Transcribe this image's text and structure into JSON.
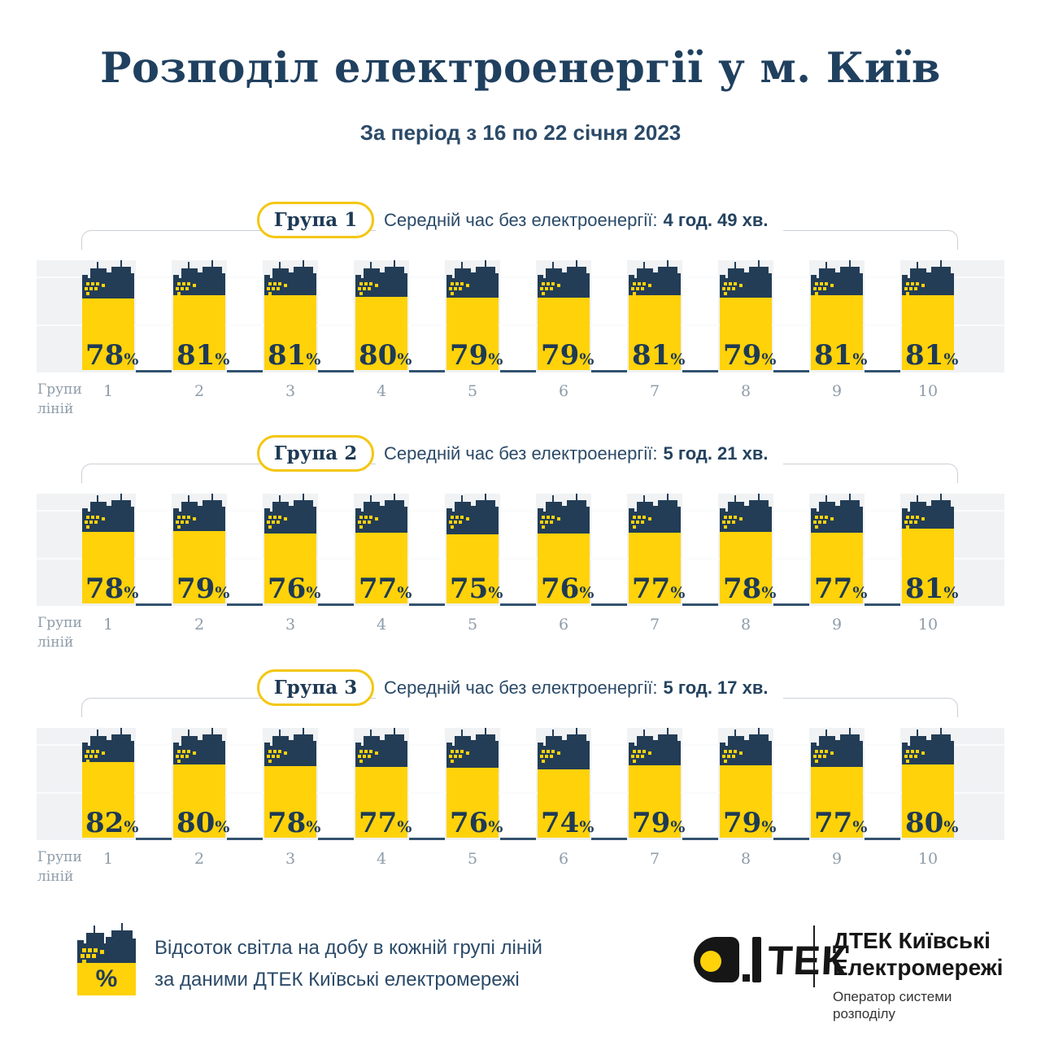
{
  "title": "Розподіл електроенергії у м. Київ",
  "subtitle": "За період з 16 по 22 січня 2023",
  "unit": "%",
  "avg_label": "Середній час без електроенергії:",
  "axis_caption": {
    "line1": "Групи",
    "line2": "ліній"
  },
  "groups": [
    {
      "pill": "Група 1",
      "avg_value": "4 год. 49 хв.",
      "values": [
        78,
        81,
        81,
        80,
        79,
        79,
        81,
        79,
        81,
        81
      ],
      "line_numbers": [
        "1",
        "2",
        "3",
        "4",
        "5",
        "6",
        "7",
        "8",
        "9",
        "10"
      ]
    },
    {
      "pill": "Група 2",
      "avg_value": "5 год. 21 хв.",
      "values": [
        78,
        79,
        76,
        77,
        75,
        76,
        77,
        78,
        77,
        81
      ],
      "line_numbers": [
        "1",
        "2",
        "3",
        "4",
        "5",
        "6",
        "7",
        "8",
        "9",
        "10"
      ]
    },
    {
      "pill": "Група 3",
      "avg_value": "5 год. 17 хв.",
      "values": [
        82,
        80,
        78,
        77,
        76,
        74,
        79,
        79,
        77,
        80
      ],
      "line_numbers": [
        "1",
        "2",
        "3",
        "4",
        "5",
        "6",
        "7",
        "8",
        "9",
        "10"
      ]
    }
  ],
  "legend": {
    "line1": "Відсоток світла на добу в кожній групі ліній",
    "line2": "за даними ДТЕК Київські електромережі",
    "icon_symbol": "%"
  },
  "logo": {
    "tek_text": "ТЕК",
    "name_line1": "ДТЕК Київські",
    "name_line2": "Електромережі",
    "sub_line1": "Оператор системи",
    "sub_line2": "розподілу"
  },
  "colors": {
    "navy": "#233D56",
    "title_navy": "#20405F",
    "yellow": "#FFD20A",
    "band_gray": "#F0F2F4",
    "axis": "#33536F",
    "muted_gray": "#8E9CA9",
    "pill_border": "#F3C713",
    "bracket_gray": "#CBD0D6",
    "text_navy": "#2B4A68"
  },
  "chart_data": [
    {
      "type": "bar",
      "title": "Група 1",
      "annotation": "Середній час без електроенергії: 4 год. 49 хв.",
      "categories": [
        "1",
        "2",
        "3",
        "4",
        "5",
        "6",
        "7",
        "8",
        "9",
        "10"
      ],
      "values": [
        78,
        81,
        81,
        80,
        79,
        79,
        81,
        79,
        81,
        81
      ],
      "xlabel": "Групи ліній",
      "ylabel": "Відсоток світла на добу, %",
      "ylim": [
        0,
        100
      ],
      "legend_position": "none",
      "grid": true
    },
    {
      "type": "bar",
      "title": "Група 2",
      "annotation": "Середній час без електроенергії: 5 год. 21 хв.",
      "categories": [
        "1",
        "2",
        "3",
        "4",
        "5",
        "6",
        "7",
        "8",
        "9",
        "10"
      ],
      "values": [
        78,
        79,
        76,
        77,
        75,
        76,
        77,
        78,
        77,
        81
      ],
      "xlabel": "Групи ліній",
      "ylabel": "Відсоток світла на добу, %",
      "ylim": [
        0,
        100
      ],
      "legend_position": "none",
      "grid": true
    },
    {
      "type": "bar",
      "title": "Група 3",
      "annotation": "Середній час без електроенергії: 5 год. 17 хв.",
      "categories": [
        "1",
        "2",
        "3",
        "4",
        "5",
        "6",
        "7",
        "8",
        "9",
        "10"
      ],
      "values": [
        82,
        80,
        78,
        77,
        76,
        74,
        79,
        79,
        77,
        80
      ],
      "xlabel": "Групи ліній",
      "ylabel": "Відсоток світла на добу, %",
      "ylim": [
        0,
        100
      ],
      "legend_position": "none",
      "grid": true
    }
  ]
}
